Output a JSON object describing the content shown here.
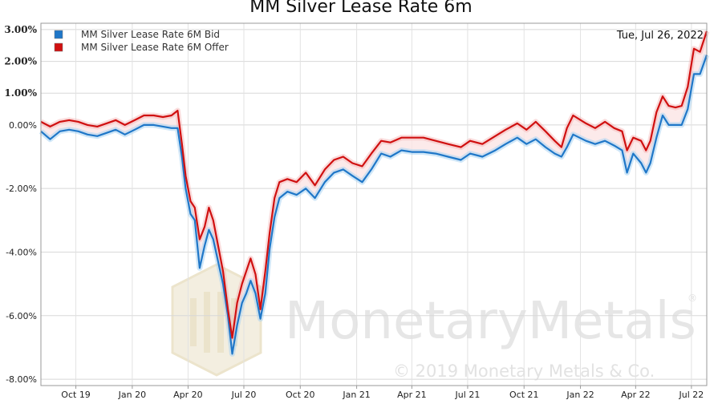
{
  "chart_data": {
    "type": "line",
    "title": "MM Silver Lease Rate 6m",
    "date_label": "Tue, Jul 26, 2022",
    "x_ticks": [
      "Oct 19",
      "Jan 20",
      "Apr 20",
      "Jul 20",
      "Oct 20",
      "Jan 21",
      "Apr 21",
      "Jul 21",
      "Oct 21",
      "Jan 22",
      "Apr 22",
      "Jul 22"
    ],
    "y_ticks": [
      {
        "value": 3.0,
        "label": "3.00%"
      },
      {
        "value": 2.0,
        "label": "2.00%"
      },
      {
        "value": 1.0,
        "label": "1.00%"
      },
      {
        "value": 0.0,
        "label": "0.00%"
      },
      {
        "value": -2.0,
        "label": "-2.00%"
      },
      {
        "value": -4.0,
        "label": "-4.00%"
      },
      {
        "value": -6.0,
        "label": "-6.00%"
      },
      {
        "value": -8.0,
        "label": "-8.00%"
      }
    ],
    "ylim": [
      -8.2,
      3.2
    ],
    "x_range": [
      "2019-08-05",
      "2022-07-26"
    ],
    "grid": true,
    "legend_position": "top-left",
    "series": [
      {
        "name": "MM Silver Lease Rate 6M Bid",
        "color": "#1f77c8",
        "points": [
          [
            "2019-08-05",
            -0.2
          ],
          [
            "2019-08-20",
            -0.45
          ],
          [
            "2019-09-05",
            -0.2
          ],
          [
            "2019-09-20",
            -0.15
          ],
          [
            "2019-10-05",
            -0.2
          ],
          [
            "2019-10-20",
            -0.3
          ],
          [
            "2019-11-05",
            -0.35
          ],
          [
            "2019-11-20",
            -0.25
          ],
          [
            "2019-12-05",
            -0.15
          ],
          [
            "2019-12-20",
            -0.3
          ],
          [
            "2020-01-05",
            -0.15
          ],
          [
            "2020-01-20",
            0.0
          ],
          [
            "2020-02-05",
            0.0
          ],
          [
            "2020-02-20",
            -0.05
          ],
          [
            "2020-03-05",
            -0.1
          ],
          [
            "2020-03-15",
            -0.1
          ],
          [
            "2020-03-22",
            -1.0
          ],
          [
            "2020-03-28",
            -2.0
          ],
          [
            "2020-04-05",
            -2.8
          ],
          [
            "2020-04-12",
            -3.0
          ],
          [
            "2020-04-20",
            -4.5
          ],
          [
            "2020-04-28",
            -3.8
          ],
          [
            "2020-05-05",
            -3.3
          ],
          [
            "2020-05-12",
            -3.6
          ],
          [
            "2020-05-20",
            -4.3
          ],
          [
            "2020-05-28",
            -5.0
          ],
          [
            "2020-06-05",
            -6.0
          ],
          [
            "2020-06-12",
            -7.2
          ],
          [
            "2020-06-20",
            -6.3
          ],
          [
            "2020-06-28",
            -5.6
          ],
          [
            "2020-07-05",
            -5.3
          ],
          [
            "2020-07-12",
            -4.9
          ],
          [
            "2020-07-20",
            -5.3
          ],
          [
            "2020-07-28",
            -6.1
          ],
          [
            "2020-08-05",
            -5.3
          ],
          [
            "2020-08-12",
            -3.9
          ],
          [
            "2020-08-20",
            -2.9
          ],
          [
            "2020-08-28",
            -2.3
          ],
          [
            "2020-09-10",
            -2.1
          ],
          [
            "2020-09-25",
            -2.2
          ],
          [
            "2020-10-10",
            -2.0
          ],
          [
            "2020-10-25",
            -2.3
          ],
          [
            "2020-11-10",
            -1.8
          ],
          [
            "2020-11-25",
            -1.5
          ],
          [
            "2020-12-10",
            -1.4
          ],
          [
            "2020-12-25",
            -1.6
          ],
          [
            "2021-01-10",
            -1.8
          ],
          [
            "2021-01-25",
            -1.4
          ],
          [
            "2021-02-10",
            -0.9
          ],
          [
            "2021-02-25",
            -1.0
          ],
          [
            "2021-03-15",
            -0.8
          ],
          [
            "2021-04-01",
            -0.85
          ],
          [
            "2021-04-20",
            -0.85
          ],
          [
            "2021-05-10",
            -0.9
          ],
          [
            "2021-05-30",
            -1.0
          ],
          [
            "2021-06-20",
            -1.1
          ],
          [
            "2021-07-05",
            -0.9
          ],
          [
            "2021-07-25",
            -1.0
          ],
          [
            "2021-08-15",
            -0.8
          ],
          [
            "2021-09-01",
            -0.6
          ],
          [
            "2021-09-20",
            -0.4
          ],
          [
            "2021-10-05",
            -0.6
          ],
          [
            "2021-10-20",
            -0.45
          ],
          [
            "2021-11-05",
            -0.7
          ],
          [
            "2021-11-20",
            -0.9
          ],
          [
            "2021-12-01",
            -1.0
          ],
          [
            "2021-12-10",
            -0.7
          ],
          [
            "2021-12-20",
            -0.3
          ],
          [
            "2022-01-10",
            -0.5
          ],
          [
            "2022-01-25",
            -0.6
          ],
          [
            "2022-02-10",
            -0.5
          ],
          [
            "2022-02-25",
            -0.65
          ],
          [
            "2022-03-10",
            -0.8
          ],
          [
            "2022-03-18",
            -1.5
          ],
          [
            "2022-03-28",
            -0.9
          ],
          [
            "2022-04-10",
            -1.2
          ],
          [
            "2022-04-18",
            -1.5
          ],
          [
            "2022-04-25",
            -1.2
          ],
          [
            "2022-05-05",
            -0.4
          ],
          [
            "2022-05-15",
            0.3
          ],
          [
            "2022-05-25",
            0.0
          ],
          [
            "2022-06-05",
            0.0
          ],
          [
            "2022-06-15",
            0.0
          ],
          [
            "2022-06-25",
            0.5
          ],
          [
            "2022-07-05",
            1.6
          ],
          [
            "2022-07-15",
            1.6
          ],
          [
            "2022-07-26",
            2.2
          ]
        ]
      },
      {
        "name": "MM Silver Lease Rate 6M Offer",
        "color": "#d01010",
        "points": [
          [
            "2019-08-05",
            0.1
          ],
          [
            "2019-08-20",
            -0.05
          ],
          [
            "2019-09-05",
            0.1
          ],
          [
            "2019-09-20",
            0.15
          ],
          [
            "2019-10-05",
            0.1
          ],
          [
            "2019-10-20",
            0.0
          ],
          [
            "2019-11-05",
            -0.05
          ],
          [
            "2019-11-20",
            0.05
          ],
          [
            "2019-12-05",
            0.15
          ],
          [
            "2019-12-20",
            0.0
          ],
          [
            "2020-01-05",
            0.15
          ],
          [
            "2020-01-20",
            0.3
          ],
          [
            "2020-02-05",
            0.3
          ],
          [
            "2020-02-20",
            0.25
          ],
          [
            "2020-03-05",
            0.3
          ],
          [
            "2020-03-15",
            0.45
          ],
          [
            "2020-03-22",
            -0.6
          ],
          [
            "2020-03-28",
            -1.6
          ],
          [
            "2020-04-05",
            -2.4
          ],
          [
            "2020-04-12",
            -2.6
          ],
          [
            "2020-04-20",
            -3.6
          ],
          [
            "2020-04-28",
            -3.2
          ],
          [
            "2020-05-05",
            -2.6
          ],
          [
            "2020-05-12",
            -3.0
          ],
          [
            "2020-05-20",
            -3.8
          ],
          [
            "2020-05-28",
            -4.6
          ],
          [
            "2020-06-05",
            -5.8
          ],
          [
            "2020-06-12",
            -6.7
          ],
          [
            "2020-06-20",
            -5.6
          ],
          [
            "2020-06-28",
            -5.0
          ],
          [
            "2020-07-05",
            -4.6
          ],
          [
            "2020-07-12",
            -4.2
          ],
          [
            "2020-07-20",
            -4.7
          ],
          [
            "2020-07-28",
            -5.8
          ],
          [
            "2020-08-05",
            -4.6
          ],
          [
            "2020-08-12",
            -3.4
          ],
          [
            "2020-08-20",
            -2.3
          ],
          [
            "2020-08-28",
            -1.8
          ],
          [
            "2020-09-10",
            -1.7
          ],
          [
            "2020-09-25",
            -1.8
          ],
          [
            "2020-10-10",
            -1.5
          ],
          [
            "2020-10-25",
            -1.9
          ],
          [
            "2020-11-10",
            -1.4
          ],
          [
            "2020-11-25",
            -1.1
          ],
          [
            "2020-12-10",
            -1.0
          ],
          [
            "2020-12-25",
            -1.2
          ],
          [
            "2021-01-10",
            -1.3
          ],
          [
            "2021-01-25",
            -0.9
          ],
          [
            "2021-02-10",
            -0.5
          ],
          [
            "2021-02-25",
            -0.55
          ],
          [
            "2021-03-15",
            -0.4
          ],
          [
            "2021-04-01",
            -0.4
          ],
          [
            "2021-04-20",
            -0.4
          ],
          [
            "2021-05-10",
            -0.5
          ],
          [
            "2021-05-30",
            -0.6
          ],
          [
            "2021-06-20",
            -0.7
          ],
          [
            "2021-07-05",
            -0.5
          ],
          [
            "2021-07-25",
            -0.6
          ],
          [
            "2021-08-15",
            -0.35
          ],
          [
            "2021-09-01",
            -0.15
          ],
          [
            "2021-09-20",
            0.05
          ],
          [
            "2021-10-05",
            -0.15
          ],
          [
            "2021-10-20",
            0.1
          ],
          [
            "2021-11-05",
            -0.2
          ],
          [
            "2021-11-20",
            -0.5
          ],
          [
            "2021-12-01",
            -0.7
          ],
          [
            "2021-12-10",
            -0.1
          ],
          [
            "2021-12-20",
            0.3
          ],
          [
            "2022-01-10",
            0.05
          ],
          [
            "2022-01-25",
            -0.1
          ],
          [
            "2022-02-10",
            0.1
          ],
          [
            "2022-02-25",
            -0.1
          ],
          [
            "2022-03-10",
            -0.2
          ],
          [
            "2022-03-18",
            -0.8
          ],
          [
            "2022-03-28",
            -0.4
          ],
          [
            "2022-04-10",
            -0.5
          ],
          [
            "2022-04-18",
            -0.8
          ],
          [
            "2022-04-25",
            -0.5
          ],
          [
            "2022-05-05",
            0.4
          ],
          [
            "2022-05-15",
            0.9
          ],
          [
            "2022-05-25",
            0.6
          ],
          [
            "2022-06-05",
            0.55
          ],
          [
            "2022-06-15",
            0.6
          ],
          [
            "2022-06-25",
            1.2
          ],
          [
            "2022-07-05",
            2.4
          ],
          [
            "2022-07-15",
            2.3
          ],
          [
            "2022-07-26",
            2.95
          ]
        ]
      }
    ]
  },
  "watermark": {
    "brand": "MonetaryMetals",
    "copyright": "© 2019 Monetary Metals & Co.",
    "registered": "®"
  }
}
